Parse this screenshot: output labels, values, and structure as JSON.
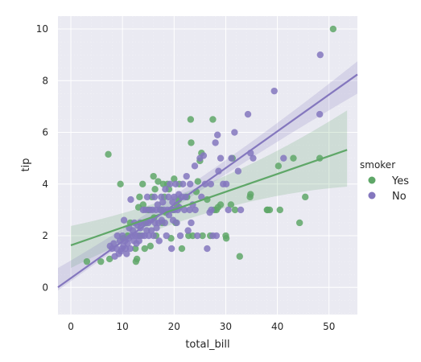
{
  "chart_data": {
    "type": "scatter",
    "xlabel": "total_bill",
    "ylabel": "tip",
    "xlim": [
      -2.5,
      55.5
    ],
    "ylim": [
      -1.05,
      10.5
    ],
    "x_ticks": [
      0,
      10,
      20,
      30,
      40,
      50
    ],
    "y_ticks": [
      0,
      2,
      4,
      6,
      8,
      10
    ],
    "grid": true,
    "background": "#eaeaf2",
    "legend": {
      "title": "smoker",
      "placement": "right"
    },
    "series": [
      {
        "name": "Yes",
        "color": "#5fa768",
        "regression": {
          "intercept": 1.63,
          "slope": 0.069,
          "x_range": [
            0.0,
            53.5
          ],
          "ci_lower_at_x0": 0.75,
          "ci_upper_at_x0": 2.38,
          "ci_lower_at_xmax": 3.9,
          "ci_upper_at_xmax": 6.85
        },
        "points": [
          [
            3.1,
            1.0
          ],
          [
            5.8,
            1.0
          ],
          [
            7.25,
            5.15
          ],
          [
            7.5,
            1.1
          ],
          [
            9.6,
            4.0
          ],
          [
            10.1,
            1.9
          ],
          [
            11.0,
            2.0
          ],
          [
            11.5,
            2.5
          ],
          [
            12.5,
            1.5
          ],
          [
            12.6,
            1.0
          ],
          [
            12.8,
            1.1
          ],
          [
            13.1,
            3.1
          ],
          [
            13.3,
            3.5
          ],
          [
            13.4,
            2.0
          ],
          [
            13.9,
            4.0
          ],
          [
            14.0,
            3.2
          ],
          [
            14.3,
            1.5
          ],
          [
            14.5,
            2.5
          ],
          [
            15.0,
            3.0
          ],
          [
            15.4,
            1.6
          ],
          [
            15.7,
            3.5
          ],
          [
            16.0,
            4.3
          ],
          [
            16.1,
            2.7
          ],
          [
            16.3,
            3.8
          ],
          [
            16.5,
            2.0
          ],
          [
            16.9,
            4.1
          ],
          [
            17.5,
            3.0
          ],
          [
            17.7,
            2.5
          ],
          [
            17.9,
            4.0
          ],
          [
            18.1,
            3.5
          ],
          [
            18.4,
            2.9
          ],
          [
            18.7,
            4.0
          ],
          [
            19.0,
            3.8
          ],
          [
            19.4,
            1.9
          ],
          [
            19.8,
            3.0
          ],
          [
            20.0,
            4.2
          ],
          [
            20.3,
            2.5
          ],
          [
            20.5,
            3.2
          ],
          [
            20.9,
            3.4
          ],
          [
            21.0,
            4.0
          ],
          [
            21.5,
            1.5
          ],
          [
            22.5,
            3.5
          ],
          [
            22.8,
            2.0
          ],
          [
            23.2,
            6.5
          ],
          [
            23.3,
            5.6
          ],
          [
            23.6,
            2.0
          ],
          [
            24.3,
            3.7
          ],
          [
            24.6,
            4.1
          ],
          [
            25.0,
            4.9
          ],
          [
            25.3,
            5.2
          ],
          [
            25.5,
            2.0
          ],
          [
            26.4,
            3.4
          ],
          [
            27.0,
            2.0
          ],
          [
            27.5,
            6.5
          ],
          [
            27.8,
            3.0
          ],
          [
            28.2,
            3.0
          ],
          [
            28.5,
            3.1
          ],
          [
            29.0,
            3.2
          ],
          [
            30.0,
            2.0
          ],
          [
            30.1,
            1.9
          ],
          [
            31.0,
            3.2
          ],
          [
            31.3,
            5.0
          ],
          [
            31.8,
            3.0
          ],
          [
            32.7,
            1.2
          ],
          [
            34.7,
            3.5
          ],
          [
            34.8,
            3.6
          ],
          [
            38.0,
            3.0
          ],
          [
            38.1,
            3.0
          ],
          [
            38.5,
            3.0
          ],
          [
            40.2,
            4.7
          ],
          [
            40.5,
            3.0
          ],
          [
            43.1,
            5.0
          ],
          [
            44.3,
            2.5
          ],
          [
            45.4,
            3.5
          ],
          [
            48.2,
            5.0
          ],
          [
            50.8,
            10.0
          ]
        ]
      },
      {
        "name": "No",
        "color": "#8477be",
        "regression": {
          "intercept": 0.36,
          "slope": 0.142,
          "x_range": [
            -2.5,
            55.5
          ],
          "ci_lower_at_x0": -0.05,
          "ci_upper_at_x0": 0.75,
          "ci_lower_at_xmax": 7.5,
          "ci_upper_at_xmax": 8.75
        },
        "points": [
          [
            7.6,
            1.6
          ],
          [
            8.0,
            1.5
          ],
          [
            8.3,
            1.7
          ],
          [
            8.5,
            1.2
          ],
          [
            8.8,
            1.5
          ],
          [
            9.0,
            2.0
          ],
          [
            9.3,
            1.3
          ],
          [
            9.5,
            1.8
          ],
          [
            9.7,
            1.4
          ],
          [
            9.9,
            1.5
          ],
          [
            10.0,
            2.0
          ],
          [
            10.2,
            1.6
          ],
          [
            10.3,
            2.6
          ],
          [
            10.5,
            1.8
          ],
          [
            10.6,
            1.5
          ],
          [
            10.8,
            1.3
          ],
          [
            11.0,
            1.7
          ],
          [
            11.2,
            1.9
          ],
          [
            11.3,
            2.3
          ],
          [
            11.5,
            1.5
          ],
          [
            11.6,
            3.4
          ],
          [
            11.8,
            2.0
          ],
          [
            12.0,
            2.2
          ],
          [
            12.2,
            1.8
          ],
          [
            12.3,
            2.5
          ],
          [
            12.5,
            2.0
          ],
          [
            12.7,
            1.7
          ],
          [
            12.9,
            2.4
          ],
          [
            13.0,
            2.0
          ],
          [
            13.2,
            1.8
          ],
          [
            13.4,
            2.5
          ],
          [
            13.5,
            2.3
          ],
          [
            13.8,
            2.0
          ],
          [
            14.0,
            3.0
          ],
          [
            14.1,
            2.5
          ],
          [
            14.3,
            2.0
          ],
          [
            14.5,
            3.0
          ],
          [
            14.7,
            2.2
          ],
          [
            14.8,
            3.5
          ],
          [
            15.0,
            2.5
          ],
          [
            15.1,
            2.0
          ],
          [
            15.3,
            3.0
          ],
          [
            15.5,
            2.6
          ],
          [
            15.6,
            2.2
          ],
          [
            15.8,
            3.0
          ],
          [
            16.0,
            2.0
          ],
          [
            16.2,
            3.5
          ],
          [
            16.3,
            2.5
          ],
          [
            16.5,
            3.0
          ],
          [
            16.6,
            2.3
          ],
          [
            16.8,
            3.2
          ],
          [
            17.0,
            2.5
          ],
          [
            17.1,
            1.8
          ],
          [
            17.3,
            3.0
          ],
          [
            17.5,
            3.5
          ],
          [
            17.6,
            2.6
          ],
          [
            17.8,
            3.3
          ],
          [
            18.0,
            3.0
          ],
          [
            18.2,
            2.5
          ],
          [
            18.3,
            3.8
          ],
          [
            18.5,
            2.0
          ],
          [
            18.7,
            3.0
          ],
          [
            18.9,
            3.5
          ],
          [
            19.0,
            2.8
          ],
          [
            19.2,
            4.0
          ],
          [
            19.4,
            3.0
          ],
          [
            19.5,
            1.5
          ],
          [
            19.7,
            3.3
          ],
          [
            19.8,
            2.6
          ],
          [
            20.0,
            3.5
          ],
          [
            20.1,
            3.0
          ],
          [
            20.3,
            4.0
          ],
          [
            20.5,
            2.5
          ],
          [
            20.7,
            3.0
          ],
          [
            20.9,
            3.6
          ],
          [
            21.0,
            3.1
          ],
          [
            21.2,
            2.0
          ],
          [
            21.5,
            3.5
          ],
          [
            21.7,
            4.0
          ],
          [
            22.0,
            3.0
          ],
          [
            22.2,
            3.5
          ],
          [
            22.4,
            4.3
          ],
          [
            22.7,
            2.2
          ],
          [
            23.0,
            3.0
          ],
          [
            23.1,
            4.0
          ],
          [
            23.3,
            2.5
          ],
          [
            23.6,
            3.2
          ],
          [
            24.0,
            4.7
          ],
          [
            24.1,
            3.0
          ],
          [
            24.5,
            2.0
          ],
          [
            25.0,
            5.0
          ],
          [
            25.3,
            3.5
          ],
          [
            25.7,
            5.1
          ],
          [
            26.0,
            4.0
          ],
          [
            26.4,
            1.5
          ],
          [
            26.9,
            2.9
          ],
          [
            27.1,
            4.0
          ],
          [
            27.2,
            3.0
          ],
          [
            27.5,
            2.0
          ],
          [
            28.0,
            5.6
          ],
          [
            28.2,
            2.0
          ],
          [
            28.4,
            5.9
          ],
          [
            28.6,
            4.5
          ],
          [
            29.0,
            5.0
          ],
          [
            29.5,
            4.0
          ],
          [
            30.1,
            4.0
          ],
          [
            30.5,
            3.0
          ],
          [
            31.1,
            5.0
          ],
          [
            31.7,
            6.0
          ],
          [
            32.4,
            4.5
          ],
          [
            32.9,
            3.0
          ],
          [
            34.3,
            6.7
          ],
          [
            34.8,
            5.2
          ],
          [
            35.3,
            5.0
          ],
          [
            39.4,
            7.6
          ],
          [
            41.2,
            5.0
          ],
          [
            48.3,
            9.0
          ],
          [
            48.2,
            6.7
          ]
        ]
      }
    ]
  }
}
